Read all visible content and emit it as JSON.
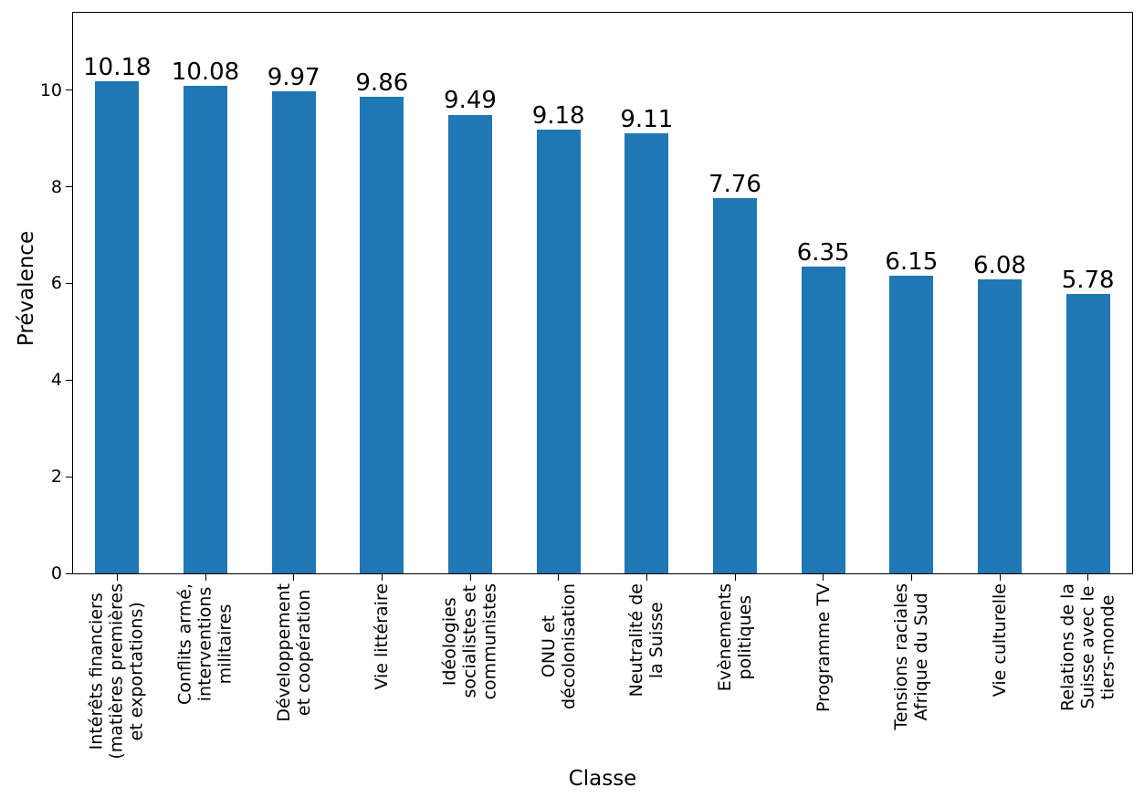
{
  "chart_data": {
    "type": "bar",
    "title": "",
    "xlabel": "Classe",
    "ylabel": "Prévalence",
    "categories": [
      "Intérêts financiers\n(matières premières\net exportations)",
      "Conflits armé,\ninterventions\nmilitaires",
      "Développement\net coopération",
      "Vie littéraire",
      "Idéologies\nsocialistes et\ncommunistes",
      "ONU et\ndécolonisation",
      "Neutralité de\nla Suisse",
      "Evènements\npolitiques",
      "Programme TV",
      "Tensions raciales\nAfrique du Sud",
      "Vie culturelle",
      "Relations de la\nSuisse avec le\ntiers-monde"
    ],
    "values": [
      10.18,
      10.08,
      9.97,
      9.86,
      9.49,
      9.18,
      9.11,
      7.76,
      6.35,
      6.15,
      6.08,
      5.78
    ],
    "value_labels": [
      "10.18",
      "10.08",
      "9.97",
      "9.86",
      "9.49",
      "9.18",
      "9.11",
      "7.76",
      "6.35",
      "6.15",
      "6.08",
      "5.78"
    ],
    "yticks": [
      0,
      2,
      4,
      6,
      8,
      10
    ],
    "ytick_labels": [
      "0",
      "2",
      "4",
      "6",
      "8",
      "10"
    ],
    "ylim": [
      0,
      11.6
    ],
    "bar_color": "#1f77b4",
    "bar_width_frac": 0.5,
    "grid": false,
    "legend": "none",
    "xtick_rotation": 90
  }
}
